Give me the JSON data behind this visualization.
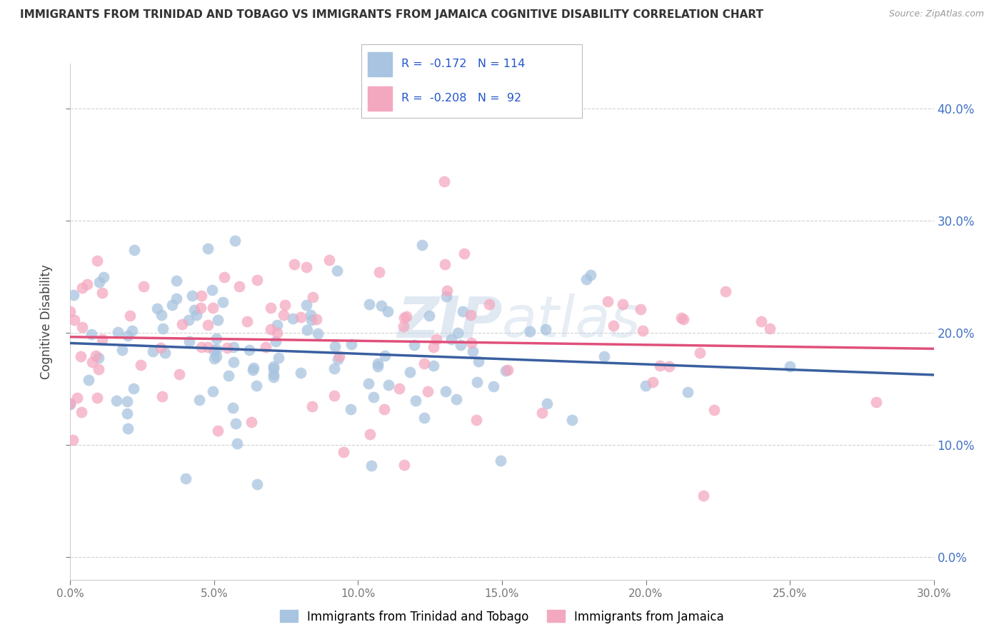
{
  "title": "IMMIGRANTS FROM TRINIDAD AND TOBAGO VS IMMIGRANTS FROM JAMAICA COGNITIVE DISABILITY CORRELATION CHART",
  "source": "Source: ZipAtlas.com",
  "ylabel": "Cognitive Disability",
  "series1_label": "Immigrants from Trinidad and Tobago",
  "series2_label": "Immigrants from Jamaica",
  "series1_color": "#a8c4e0",
  "series2_color": "#f4a8c0",
  "series1_line_color": "#3a5fa0",
  "series2_line_color": "#e0507a",
  "series1_r": -0.172,
  "series1_n": 114,
  "series2_r": -0.208,
  "series2_n": 92,
  "legend_r_color": "#2255cc",
  "xlim": [
    0.0,
    0.3
  ],
  "ylim": [
    -0.02,
    0.44
  ],
  "xticks": [
    0.0,
    0.05,
    0.1,
    0.15,
    0.2,
    0.25,
    0.3
  ],
  "yticks": [
    0.0,
    0.1,
    0.2,
    0.3,
    0.4
  ],
  "watermark_zip": "ZIP",
  "watermark_atlas": "atlas",
  "background_color": "#ffffff"
}
